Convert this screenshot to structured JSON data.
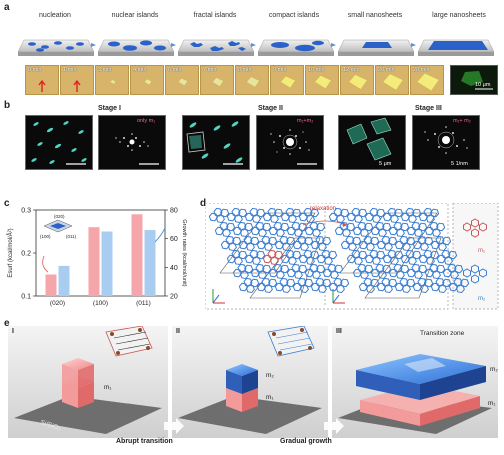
{
  "panels": {
    "a": "a",
    "b": "b",
    "c": "c",
    "d": "d",
    "e": "e"
  },
  "panel_a": {
    "stages": [
      "nucleation",
      "nuclear islands",
      "fractal islands",
      "compact islands",
      "small nanosheets",
      "large nanosheets"
    ],
    "times": [
      "0 min",
      "1 min",
      "3 min",
      "4 min",
      "6 min",
      "7 min",
      "8 min",
      "9 min",
      "10 min",
      "12 min",
      "20 min",
      "28 min"
    ],
    "scale": "10 μm"
  },
  "panel_b": {
    "stage_titles": [
      "Stage I",
      "Stage II",
      "Stage III"
    ],
    "notes": {
      "only": "only m₁",
      "m1m2": "m₁+m₂",
      "m1m2_b": "m₁+ m₂"
    },
    "scales": {
      "real": "5 μm",
      "recip": "5 1/nm"
    }
  },
  "panel_d": {
    "relaxation": "relaxation",
    "labels": {
      "m1": "m₁",
      "m2": "m₂"
    }
  },
  "panel_e": {
    "stage_numbers": [
      "I",
      "II",
      "III"
    ],
    "labels": {
      "m1": "m₁",
      "m2": "m₂",
      "substrate": "Si/SiO₂",
      "transition_zone": "Transition zone"
    },
    "arrows": {
      "abrupt": "Abrupt transition",
      "gradual": "Gradual growth"
    }
  },
  "chart_data": {
    "type": "bar",
    "categories": [
      "(020)",
      "(100)",
      "(011)"
    ],
    "series": [
      {
        "values": [
          0.15,
          0.26,
          0.29
        ],
        "color": "#f4a6aa",
        "axis": "left"
      },
      {
        "values": [
          41,
          65,
          66
        ],
        "color": "#a8cdf0",
        "axis": "right"
      }
    ],
    "ylabel_left": "Esurf (kcal/mol/Å²)",
    "ylabel_right": "Growth rates (kcal/mol/unit)",
    "ylim_left": [
      0.1,
      0.3
    ],
    "ylim_right": [
      20,
      80
    ],
    "yticks_left": [
      0.1,
      0.2,
      0.3
    ],
    "yticks_right": [
      20,
      40,
      60,
      80
    ],
    "inset_labels": [
      "(020)",
      "(100)",
      "(011)"
    ],
    "grid": false
  }
}
